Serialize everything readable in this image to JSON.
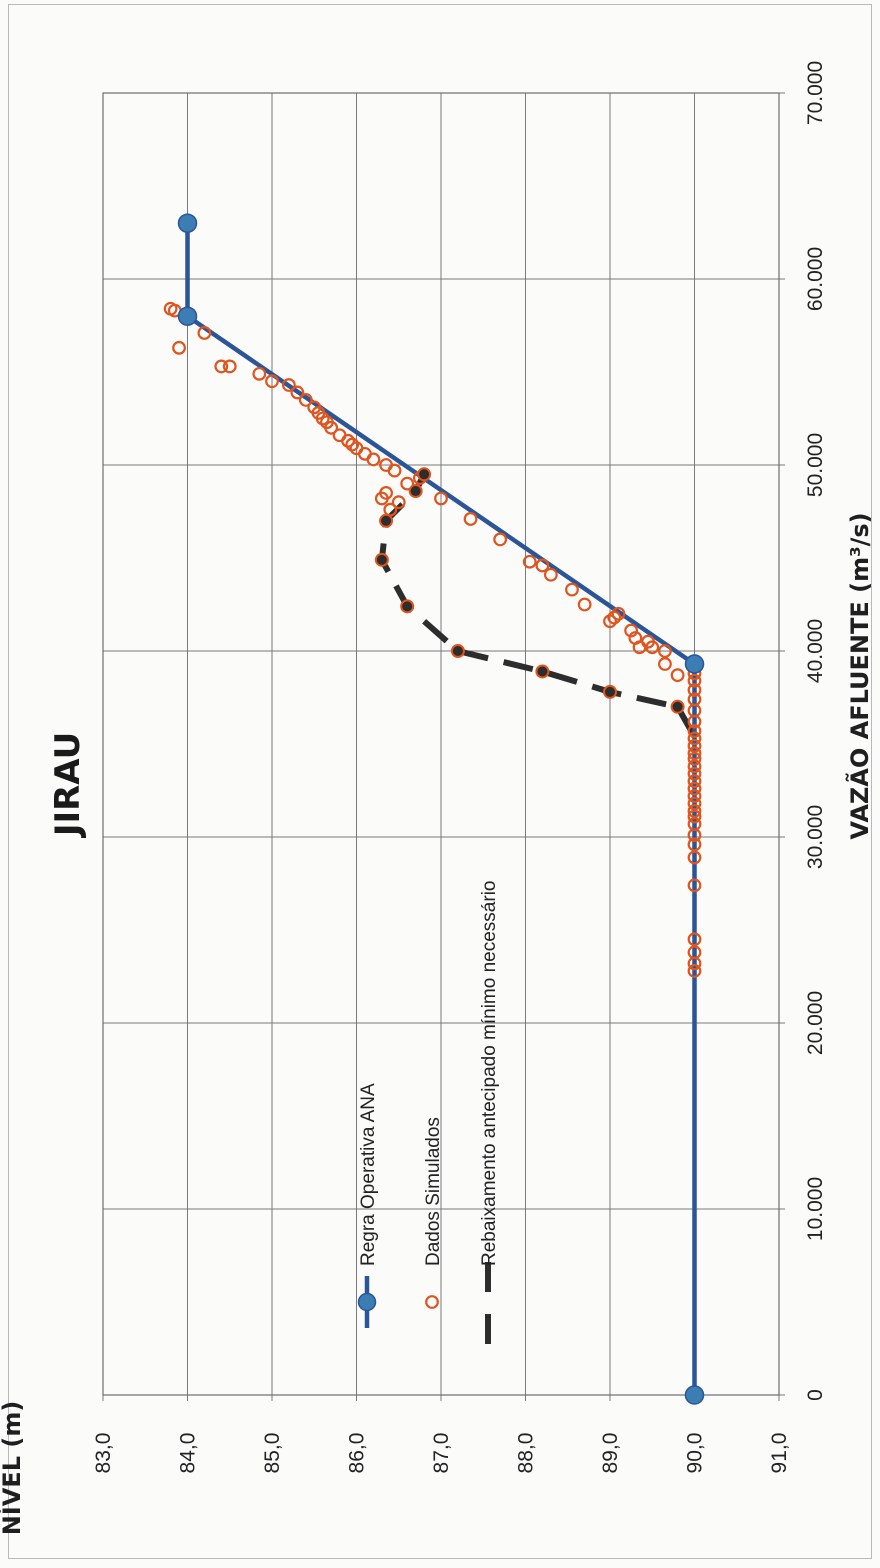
{
  "chart_data": {
    "type": "scatter",
    "title": "JIRAU",
    "xlabel": "VAZÃO AFLUENTE (m³/s)",
    "ylabel": "NÍVEL (m)",
    "xlim": [
      0,
      70000
    ],
    "ylim": [
      83.0,
      91.0
    ],
    "x_ticks": [
      "0",
      "10.000",
      "20.000",
      "30.000",
      "40.000",
      "50.000",
      "60.000",
      "70.000"
    ],
    "y_ticks": [
      "83,0",
      "84,0",
      "85,0",
      "86,0",
      "87,0",
      "88,0",
      "89,0",
      "90,0",
      "91,0"
    ],
    "grid": true,
    "orientation": "rotated 90° counter-clockwise (x axis runs bottom-to-top, y axis left-to-right)",
    "legend_position": "inside, lower-left of plot area",
    "colors": {
      "regra": "#2b5597",
      "regra_marker": "#3c7db4",
      "simulados": "#e0541d",
      "rebaixamento": "#2d2d2d",
      "grid": "#7a7a7a"
    },
    "series": [
      {
        "name": "Regra Operativa ANA",
        "style": "line-with-markers",
        "points": [
          [
            0,
            90.0
          ],
          [
            39300,
            90.0
          ],
          [
            58000,
            84.0
          ],
          [
            63000,
            84.0
          ]
        ]
      },
      {
        "name": "Dados Simulados",
        "style": "open-circles",
        "points": [
          [
            22800,
            90.0
          ],
          [
            23200,
            90.0
          ],
          [
            23800,
            90.0
          ],
          [
            24500,
            90.0
          ],
          [
            27400,
            90.0
          ],
          [
            28900,
            90.0
          ],
          [
            29600,
            90.0
          ],
          [
            30100,
            90.0
          ],
          [
            30700,
            90.0
          ],
          [
            31100,
            90.0
          ],
          [
            31400,
            90.0
          ],
          [
            31800,
            90.0
          ],
          [
            32200,
            90.0
          ],
          [
            32600,
            90.0
          ],
          [
            33000,
            90.0
          ],
          [
            33400,
            90.0
          ],
          [
            33800,
            90.0
          ],
          [
            34200,
            90.0
          ],
          [
            34500,
            90.0
          ],
          [
            34900,
            90.0
          ],
          [
            35300,
            90.0
          ],
          [
            35700,
            90.0
          ],
          [
            36200,
            90.0
          ],
          [
            36800,
            90.0
          ],
          [
            37400,
            90.0
          ],
          [
            37900,
            90.0
          ],
          [
            38400,
            90.0
          ],
          [
            38800,
            90.0
          ],
          [
            38700,
            89.8
          ],
          [
            39300,
            89.65
          ],
          [
            40000,
            89.65
          ],
          [
            40200,
            89.5
          ],
          [
            40200,
            89.35
          ],
          [
            40500,
            89.45
          ],
          [
            40700,
            89.3
          ],
          [
            41100,
            89.25
          ],
          [
            41600,
            89.0
          ],
          [
            41800,
            89.05
          ],
          [
            42000,
            89.1
          ],
          [
            42500,
            88.7
          ],
          [
            43300,
            88.55
          ],
          [
            44100,
            88.3
          ],
          [
            44600,
            88.2
          ],
          [
            44800,
            88.05
          ],
          [
            46000,
            87.7
          ],
          [
            47100,
            87.35
          ],
          [
            48200,
            87.0
          ],
          [
            48000,
            86.5
          ],
          [
            47600,
            86.4
          ],
          [
            48500,
            86.35
          ],
          [
            48200,
            86.3
          ],
          [
            49000,
            86.6
          ],
          [
            49300,
            86.75
          ],
          [
            49700,
            86.45
          ],
          [
            50000,
            86.35
          ],
          [
            50300,
            86.2
          ],
          [
            50600,
            86.1
          ],
          [
            50900,
            86.0
          ],
          [
            51100,
            85.95
          ],
          [
            51300,
            85.9
          ],
          [
            51600,
            85.8
          ],
          [
            52000,
            85.7
          ],
          [
            52300,
            85.65
          ],
          [
            52500,
            85.6
          ],
          [
            52800,
            85.55
          ],
          [
            53100,
            85.5
          ],
          [
            53500,
            85.4
          ],
          [
            53900,
            85.3
          ],
          [
            54300,
            85.2
          ],
          [
            54500,
            85.0
          ],
          [
            54900,
            84.85
          ],
          [
            55300,
            84.5
          ],
          [
            55300,
            84.4
          ],
          [
            57100,
            84.2
          ],
          [
            56300,
            83.9
          ],
          [
            58300,
            83.85
          ],
          [
            58400,
            83.8
          ]
        ]
      },
      {
        "name": "Rebaixamento antecipado mínimo necessário",
        "style": "dashed-line-with-dark-markers",
        "points": [
          [
            35400,
            90.0
          ],
          [
            37000,
            89.8
          ],
          [
            37800,
            89.0
          ],
          [
            38900,
            88.2
          ],
          [
            40000,
            87.2
          ],
          [
            42400,
            86.6
          ],
          [
            44900,
            86.3
          ],
          [
            47000,
            86.35
          ],
          [
            48600,
            86.7
          ],
          [
            49500,
            86.8
          ]
        ]
      }
    ]
  }
}
